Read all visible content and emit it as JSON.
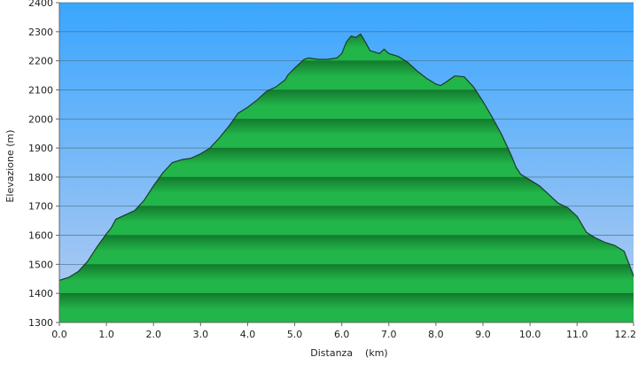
{
  "chart_data": {
    "type": "area",
    "xlabel": "Distanza    (km)",
    "ylabel": "Elevazione (m)",
    "xlim": [
      0,
      12.2
    ],
    "ylim": [
      1300,
      2400
    ],
    "x_ticks": [
      "0.0",
      "1.0",
      "2.0",
      "3.0",
      "4.0",
      "5.0",
      "6.0",
      "7.0",
      "8.0",
      "9.0",
      "10.0",
      "11.0",
      "12.2"
    ],
    "x_tick_values": [
      0,
      1,
      2,
      3,
      4,
      5,
      6,
      7,
      8,
      9,
      10,
      11,
      12.2
    ],
    "y_ticks": [
      "1300",
      "1400",
      "1500",
      "1600",
      "1700",
      "1800",
      "1900",
      "2000",
      "2100",
      "2200",
      "2300",
      "2400"
    ],
    "y_tick_values": [
      1300,
      1400,
      1500,
      1600,
      1700,
      1800,
      1900,
      2000,
      2100,
      2200,
      2300,
      2400
    ],
    "grid": true,
    "colors": {
      "sky_top": "#3aa6ff",
      "sky_bottom": "#a9c8f2",
      "fill_light": "#22b54a",
      "fill_dark": "#137a2d",
      "outline": "#1f3a2a",
      "gridline": "#5f7fb0"
    },
    "series": [
      {
        "points": [
          [
            0.0,
            1445
          ],
          [
            0.2,
            1455
          ],
          [
            0.4,
            1475
          ],
          [
            0.6,
            1510
          ],
          [
            0.8,
            1560
          ],
          [
            1.0,
            1605
          ],
          [
            1.1,
            1625
          ],
          [
            1.2,
            1655
          ],
          [
            1.4,
            1670
          ],
          [
            1.6,
            1685
          ],
          [
            1.8,
            1720
          ],
          [
            2.0,
            1770
          ],
          [
            2.2,
            1815
          ],
          [
            2.4,
            1850
          ],
          [
            2.6,
            1860
          ],
          [
            2.8,
            1865
          ],
          [
            3.0,
            1880
          ],
          [
            3.2,
            1900
          ],
          [
            3.4,
            1935
          ],
          [
            3.6,
            1975
          ],
          [
            3.8,
            2020
          ],
          [
            4.0,
            2040
          ],
          [
            4.2,
            2065
          ],
          [
            4.4,
            2095
          ],
          [
            4.6,
            2110
          ],
          [
            4.8,
            2135
          ],
          [
            4.85,
            2150
          ],
          [
            5.0,
            2175
          ],
          [
            5.2,
            2205
          ],
          [
            5.3,
            2210
          ],
          [
            5.5,
            2205
          ],
          [
            5.7,
            2205
          ],
          [
            5.9,
            2210
          ],
          [
            6.0,
            2225
          ],
          [
            6.1,
            2265
          ],
          [
            6.2,
            2285
          ],
          [
            6.3,
            2280
          ],
          [
            6.4,
            2292
          ],
          [
            6.5,
            2265
          ],
          [
            6.6,
            2235
          ],
          [
            6.8,
            2225
          ],
          [
            6.9,
            2240
          ],
          [
            7.0,
            2225
          ],
          [
            7.2,
            2215
          ],
          [
            7.4,
            2195
          ],
          [
            7.6,
            2165
          ],
          [
            7.8,
            2140
          ],
          [
            7.95,
            2125
          ],
          [
            8.0,
            2120
          ],
          [
            8.1,
            2115
          ],
          [
            8.2,
            2125
          ],
          [
            8.4,
            2148
          ],
          [
            8.6,
            2145
          ],
          [
            8.8,
            2110
          ],
          [
            9.0,
            2060
          ],
          [
            9.2,
            2005
          ],
          [
            9.4,
            1945
          ],
          [
            9.6,
            1875
          ],
          [
            9.7,
            1835
          ],
          [
            9.8,
            1810
          ],
          [
            10.0,
            1790
          ],
          [
            10.2,
            1770
          ],
          [
            10.4,
            1740
          ],
          [
            10.6,
            1710
          ],
          [
            10.8,
            1695
          ],
          [
            11.0,
            1665
          ],
          [
            11.2,
            1610
          ],
          [
            11.4,
            1590
          ],
          [
            11.6,
            1575
          ],
          [
            11.8,
            1565
          ],
          [
            12.0,
            1545
          ],
          [
            12.2,
            1460
          ]
        ]
      }
    ]
  }
}
